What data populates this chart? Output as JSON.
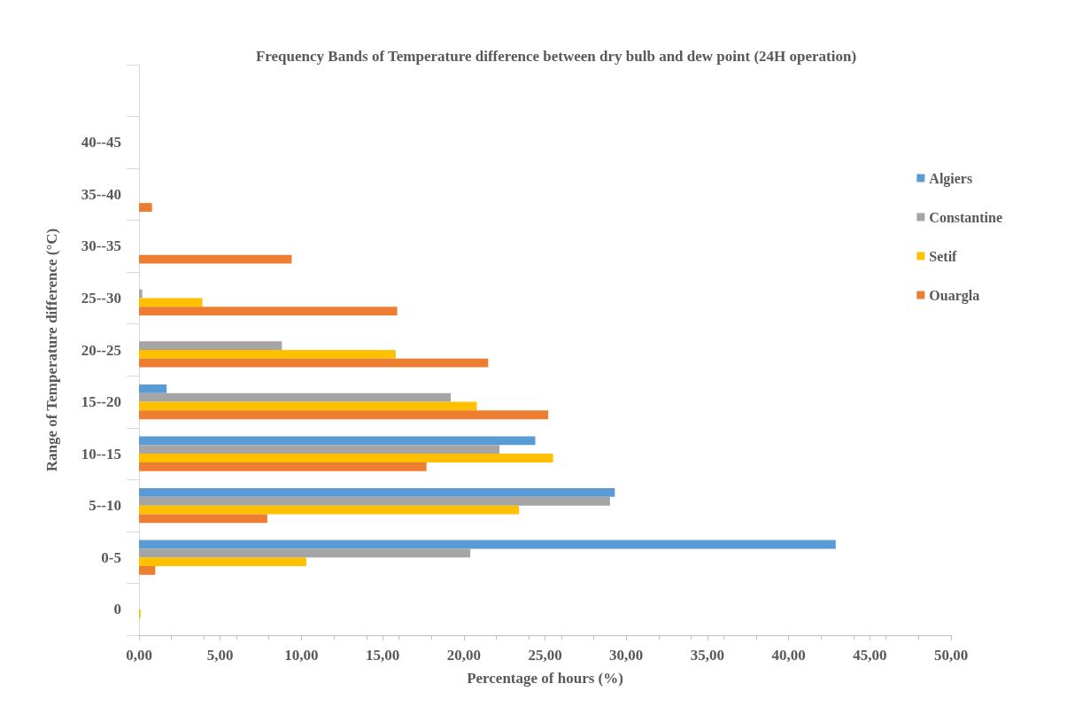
{
  "chart_data": {
    "type": "bar",
    "orientation": "horizontal",
    "title": "Frequency Bands of Temperature difference between dry bulb and dew point (24H operation)",
    "xlabel": "Percentage of hours (%)",
    "ylabel": "Range of Temperature difference (°C)",
    "categories": [
      null,
      "40--45",
      "35--40",
      "30--35",
      "25--30",
      "20--25",
      "15--20",
      "10--15",
      "5--10",
      "0-5",
      "0"
    ],
    "series": [
      {
        "name": "Algiers",
        "color": "#5b9bd5",
        "values": [
          0,
          0,
          0,
          0,
          0,
          0,
          1.7,
          24.4,
          29.3,
          42.9,
          0
        ]
      },
      {
        "name": "Constantine",
        "color": "#a5a5a5",
        "values": [
          0,
          0,
          0,
          0,
          0.2,
          8.8,
          19.2,
          22.2,
          29.0,
          20.4,
          0
        ]
      },
      {
        "name": "Setif",
        "color": "#ffc000",
        "values": [
          0,
          0,
          0,
          0,
          3.9,
          15.8,
          20.8,
          25.5,
          23.4,
          10.3,
          0.1
        ]
      },
      {
        "name": "Ouargla",
        "color": "#ed7d31",
        "values": [
          0,
          0,
          0.8,
          9.4,
          15.9,
          21.5,
          25.2,
          17.7,
          7.9,
          1.0,
          0
        ]
      }
    ],
    "xlim": [
      0,
      50
    ],
    "xticks": [
      {
        "value": 0,
        "label": "0,00"
      },
      {
        "value": 5,
        "label": "5,00"
      },
      {
        "value": 10,
        "label": "10,00"
      },
      {
        "value": 15,
        "label": "15,00"
      },
      {
        "value": 20,
        "label": "20,00"
      },
      {
        "value": 25,
        "label": "25,00"
      },
      {
        "value": 30,
        "label": "30,00"
      },
      {
        "value": 35,
        "label": "35,00"
      },
      {
        "value": 40,
        "label": "40,00"
      },
      {
        "value": 45,
        "label": "45,00"
      },
      {
        "value": 50,
        "label": "50,00"
      }
    ],
    "legend": "right",
    "grid": false
  }
}
